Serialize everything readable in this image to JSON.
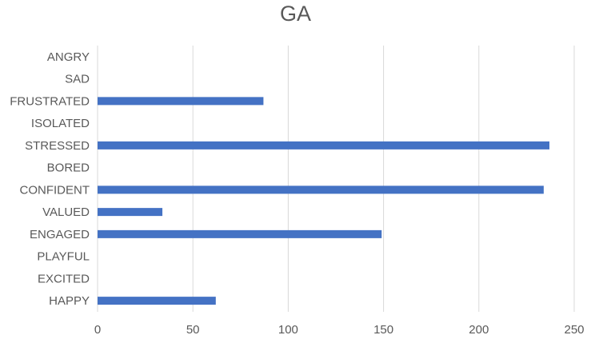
{
  "chart_data": {
    "type": "bar",
    "orientation": "horizontal",
    "title": "GA",
    "xlabel": "",
    "ylabel": "",
    "categories": [
      "HAPPY",
      "EXCITED",
      "PLAYFUL",
      "ENGAGED",
      "VALUED",
      "CONFIDENT",
      "BORED",
      "STRESSED",
      "ISOLATED",
      "FRUSTRATED",
      "SAD",
      "ANGRY"
    ],
    "values": [
      62,
      0,
      0,
      149,
      34,
      234,
      0,
      237,
      0,
      87,
      0,
      0
    ],
    "xlim": [
      0,
      250
    ],
    "xticks": [
      "0",
      "50",
      "100",
      "150",
      "200",
      "250"
    ],
    "grid": "vertical",
    "legend": "none",
    "bar_color": "#4472C4",
    "grid_color": "#D9D9D9",
    "text_color": "#595959"
  }
}
